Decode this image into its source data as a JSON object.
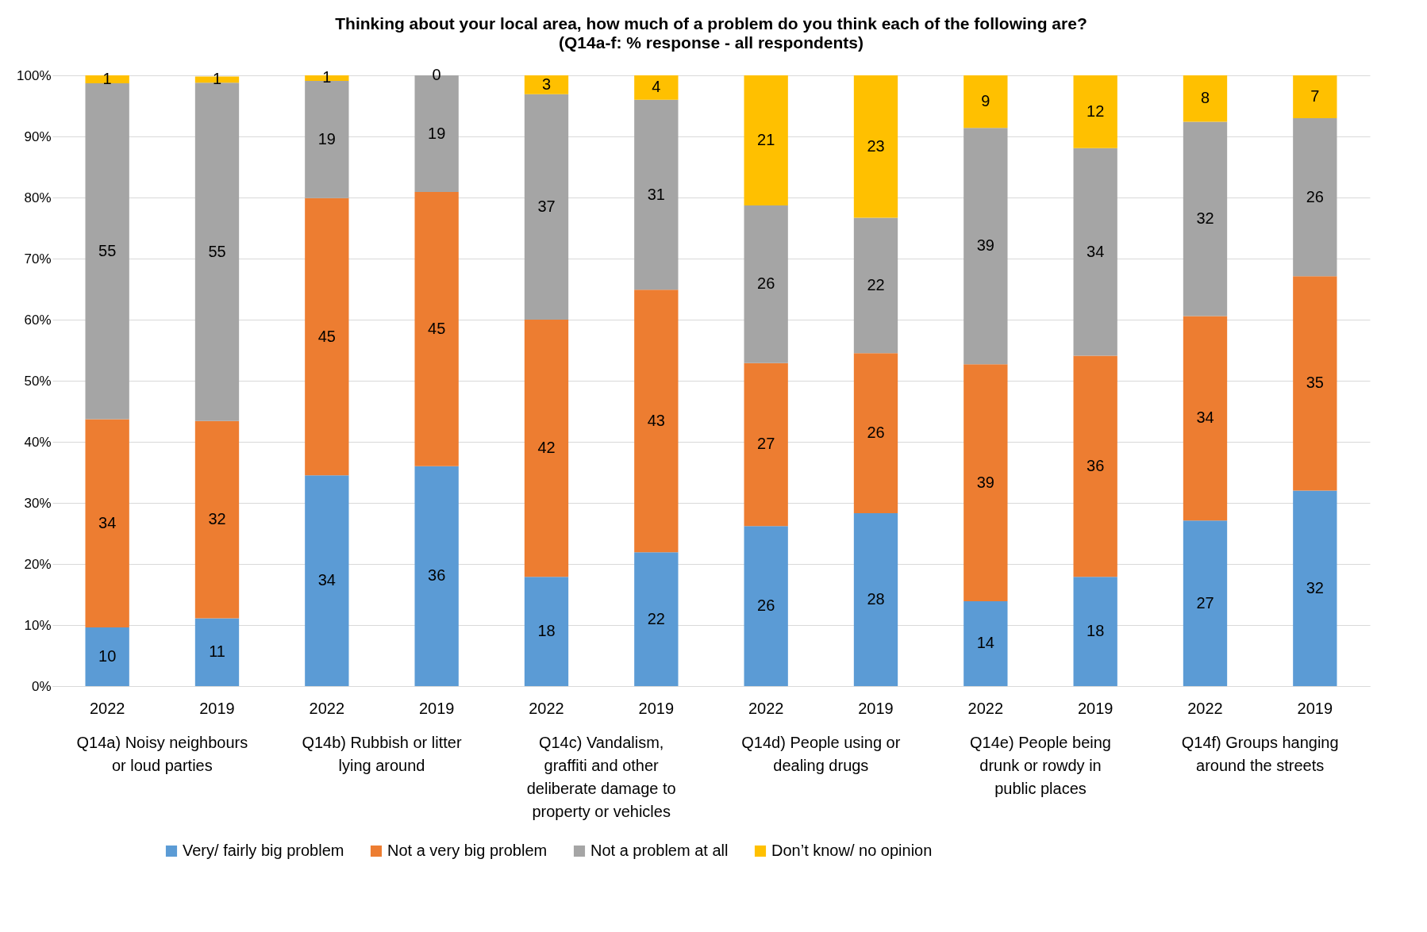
{
  "chart_data": {
    "type": "bar",
    "stacked": true,
    "title": "Thinking about your local area, how much of a problem do you think each of the following are?",
    "subtitle": "(Q14a-f: % response - all respondents)",
    "categories": [
      "2022",
      "2019",
      "2022",
      "2019",
      "2022",
      "2019",
      "2022",
      "2019",
      "2022",
      "2019",
      "2022",
      "2019"
    ],
    "annotations": [
      "Q14a) Noisy neighbours or loud parties",
      "Q14b) Rubbish or litter lying around",
      "Q14c) Vandalism, graffiti and other deliberate damage to property or vehicles",
      "Q14d) People using or dealing drugs",
      "Q14e) People being drunk or rowdy in public places",
      "Q14f) Groups hanging around the streets"
    ],
    "series": [
      {
        "name": "Very/ fairly big problem",
        "color": "#5b9bd5",
        "values": [
          9.6,
          11.1,
          34.5,
          36.0,
          17.9,
          21.9,
          26.2,
          28.3,
          13.9,
          17.9,
          27.1,
          32.0
        ],
        "value_labels": [
          "10",
          "11",
          "34",
          "36",
          "18",
          "22",
          "26",
          "28",
          "14",
          "18",
          "27",
          "32"
        ]
      },
      {
        "name": "Not a very big problem",
        "color": "#ed7d31",
        "values": [
          34.1,
          32.3,
          45.4,
          44.9,
          42.1,
          43.0,
          26.7,
          26.2,
          38.8,
          36.2,
          33.5,
          35.1
        ],
        "value_labels": [
          "34",
          "32",
          "45",
          "45",
          "42",
          "43",
          "27",
          "26",
          "39",
          "36",
          "34",
          "35"
        ]
      },
      {
        "name": "Not a problem at all",
        "color": "#a5a5a5",
        "values": [
          55.0,
          55.4,
          19.2,
          19.1,
          36.9,
          31.1,
          25.8,
          22.2,
          38.7,
          34.0,
          31.8,
          25.9
        ],
        "value_labels": [
          "55",
          "55",
          "19",
          "19",
          "37",
          "31",
          "26",
          "22",
          "39",
          "34",
          "32",
          "26"
        ]
      },
      {
        "name": "Don’t know/ no opinion",
        "color": "#ffc000",
        "values": [
          1.3,
          1.0,
          0.9,
          0,
          3.1,
          4.0,
          21.3,
          23.3,
          8.6,
          11.9,
          7.6,
          7.0
        ],
        "value_labels": [
          "1",
          "1",
          "1",
          "0",
          "3",
          "4",
          "21",
          "23",
          "9",
          "12",
          "8",
          "7"
        ]
      }
    ],
    "ylim": [
      0,
      100
    ],
    "yticks": [
      {
        "value": 0,
        "label": "0%"
      },
      {
        "value": 10,
        "label": "10%"
      },
      {
        "value": 20,
        "label": "20%"
      },
      {
        "value": 30,
        "label": "30%"
      },
      {
        "value": 40,
        "label": "40%"
      },
      {
        "value": 50,
        "label": "50%"
      },
      {
        "value": 60,
        "label": "60%"
      },
      {
        "value": 70,
        "label": "70%"
      },
      {
        "value": 80,
        "label": "80%"
      },
      {
        "value": 90,
        "label": "90%"
      },
      {
        "value": 100,
        "label": "100%"
      }
    ],
    "grid": "y",
    "legend": "bottom"
  }
}
